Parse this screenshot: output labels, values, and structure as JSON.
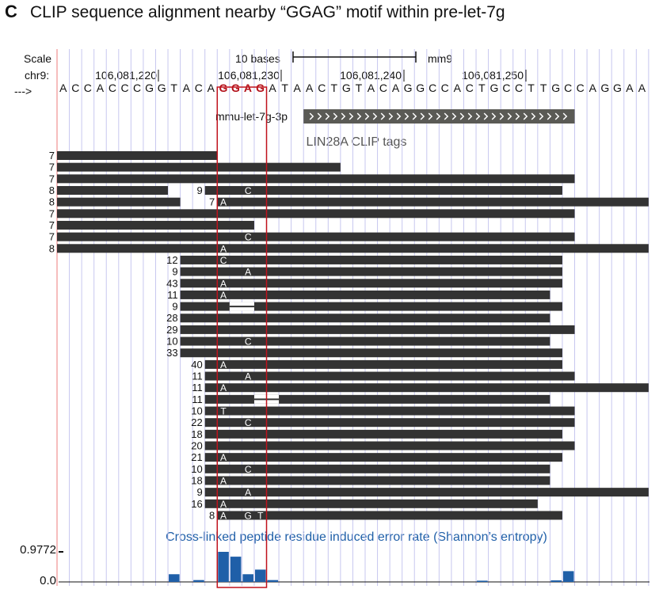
{
  "panel_letter": "C",
  "title": "CLIP sequence alignment nearby “GGAG” motif within pre-let-7g",
  "scale_label": "Scale",
  "scale_bar_text": "10 bases",
  "assembly": "mm9",
  "chrom_label": "chr9:",
  "coordinates": [
    "106,081,220",
    "106,081,230",
    "106,081,240",
    "106,081,250"
  ],
  "strand_arrow": "--->",
  "sequence": "ACCACCCGGTACAGGAGATAACTGTACAGGCCACTGCCTTGCCAGGAA",
  "motif": "GGAG",
  "mirna_label": "mmu-let-7g-3p",
  "clip_label": "LIN28A CLIP tags",
  "error_title": "Cross-linked peptide residue induced error rate (Shannon’s entropy)",
  "error_ymax": "0.9772",
  "error_ymin": "0.0",
  "colors": {
    "read": "#333333",
    "highlight_box": "#c0121c",
    "entropy_bar": "#1f5fa8",
    "grid": "#c7c7ef",
    "left_border": "#f4a7a7",
    "mirna_track": "#5a5a55",
    "motif": "#b3121b"
  },
  "reads": [
    {
      "count": "7",
      "segments": [
        [
          0,
          13
        ]
      ]
    },
    {
      "count": "7",
      "segments": [
        [
          0,
          23
        ]
      ]
    },
    {
      "count": "7",
      "segments": [
        [
          0,
          42
        ]
      ]
    },
    {
      "count": "8",
      "segments": [
        [
          0,
          9
        ],
        [
          12,
          41
        ]
      ],
      "mut_label": "9",
      "mismatches": [
        {
          "pos": 15,
          "base": "C"
        }
      ]
    },
    {
      "count": "8",
      "segments": [
        [
          0,
          10
        ],
        [
          13,
          48
        ]
      ],
      "mut_label": "7",
      "mismatches": [
        {
          "pos": 13,
          "base": "A"
        }
      ]
    },
    {
      "count": "7",
      "segments": [
        [
          0,
          42
        ]
      ]
    },
    {
      "count": "7",
      "segments": [
        [
          0,
          16
        ]
      ]
    },
    {
      "count": "7",
      "segments": [
        [
          0,
          42
        ]
      ],
      "mismatches": [
        {
          "pos": 15,
          "base": "C"
        }
      ]
    },
    {
      "count": "8",
      "segments": [
        [
          0,
          48
        ]
      ],
      "mismatches": [
        {
          "pos": 13,
          "base": "A"
        }
      ]
    },
    {
      "count": "12",
      "segments": [
        [
          10,
          41
        ]
      ],
      "mismatches": [
        {
          "pos": 13,
          "base": "C"
        }
      ]
    },
    {
      "count": "9",
      "segments": [
        [
          10,
          41
        ]
      ],
      "mismatches": [
        {
          "pos": 15,
          "base": "A"
        }
      ]
    },
    {
      "count": "43",
      "segments": [
        [
          10,
          41
        ]
      ],
      "mismatches": [
        {
          "pos": 13,
          "base": "A"
        }
      ]
    },
    {
      "count": "11",
      "segments": [
        [
          10,
          40
        ]
      ],
      "mismatches": [
        {
          "pos": 13,
          "base": "A"
        }
      ]
    },
    {
      "count": "9",
      "segments": [
        [
          10,
          41
        ]
      ],
      "gap": [
        14,
        16
      ]
    },
    {
      "count": "28",
      "segments": [
        [
          10,
          40
        ]
      ]
    },
    {
      "count": "29",
      "segments": [
        [
          10,
          42
        ]
      ]
    },
    {
      "count": "10",
      "segments": [
        [
          10,
          40
        ]
      ],
      "mismatches": [
        {
          "pos": 15,
          "base": "C"
        }
      ]
    },
    {
      "count": "33",
      "segments": [
        [
          10,
          41
        ]
      ]
    },
    {
      "count": "40",
      "segments": [
        [
          12,
          41
        ]
      ],
      "mismatches": [
        {
          "pos": 13,
          "base": "A"
        }
      ]
    },
    {
      "count": "11",
      "segments": [
        [
          12,
          42
        ]
      ],
      "mismatches": [
        {
          "pos": 15,
          "base": "A"
        }
      ]
    },
    {
      "count": "11",
      "segments": [
        [
          12,
          48
        ]
      ],
      "mismatches": [
        {
          "pos": 13,
          "base": "A"
        }
      ]
    },
    {
      "count": "11",
      "segments": [
        [
          12,
          40
        ]
      ],
      "gap": [
        16,
        18
      ]
    },
    {
      "count": "10",
      "segments": [
        [
          12,
          42
        ]
      ],
      "mismatches": [
        {
          "pos": 13,
          "base": "T"
        }
      ]
    },
    {
      "count": "22",
      "segments": [
        [
          12,
          42
        ]
      ],
      "mismatches": [
        {
          "pos": 15,
          "base": "C"
        }
      ]
    },
    {
      "count": "18",
      "segments": [
        [
          12,
          41
        ]
      ]
    },
    {
      "count": "20",
      "segments": [
        [
          12,
          42
        ]
      ]
    },
    {
      "count": "21",
      "segments": [
        [
          12,
          41
        ]
      ],
      "mismatches": [
        {
          "pos": 13,
          "base": "A"
        }
      ]
    },
    {
      "count": "10",
      "segments": [
        [
          12,
          40
        ]
      ],
      "mismatches": [
        {
          "pos": 15,
          "base": "C"
        }
      ]
    },
    {
      "count": "18",
      "segments": [
        [
          12,
          40
        ]
      ],
      "mismatches": [
        {
          "pos": 13,
          "base": "A"
        }
      ]
    },
    {
      "count": "9",
      "segments": [
        [
          12,
          48
        ]
      ],
      "mismatches": [
        {
          "pos": 15,
          "base": "A"
        }
      ]
    },
    {
      "count": "16",
      "segments": [
        [
          12,
          39
        ]
      ],
      "mismatches": [
        {
          "pos": 13,
          "base": "A"
        }
      ]
    },
    {
      "count": "8",
      "segments": [
        [
          13,
          41
        ]
      ],
      "mismatches": [
        {
          "pos": 13,
          "base": "A"
        },
        {
          "pos": 15,
          "base": "G"
        },
        {
          "pos": 16,
          "base": "T"
        }
      ]
    }
  ],
  "entropy": [
    {
      "pos": 9,
      "value": 0.25
    },
    {
      "pos": 11,
      "value": 0.06
    },
    {
      "pos": 13,
      "value": 0.9772
    },
    {
      "pos": 14,
      "value": 0.82
    },
    {
      "pos": 15,
      "value": 0.25
    },
    {
      "pos": 16,
      "value": 0.4
    },
    {
      "pos": 17,
      "value": 0.06
    },
    {
      "pos": 34,
      "value": 0.04
    },
    {
      "pos": 40,
      "value": 0.05
    },
    {
      "pos": 41,
      "value": 0.35
    }
  ]
}
